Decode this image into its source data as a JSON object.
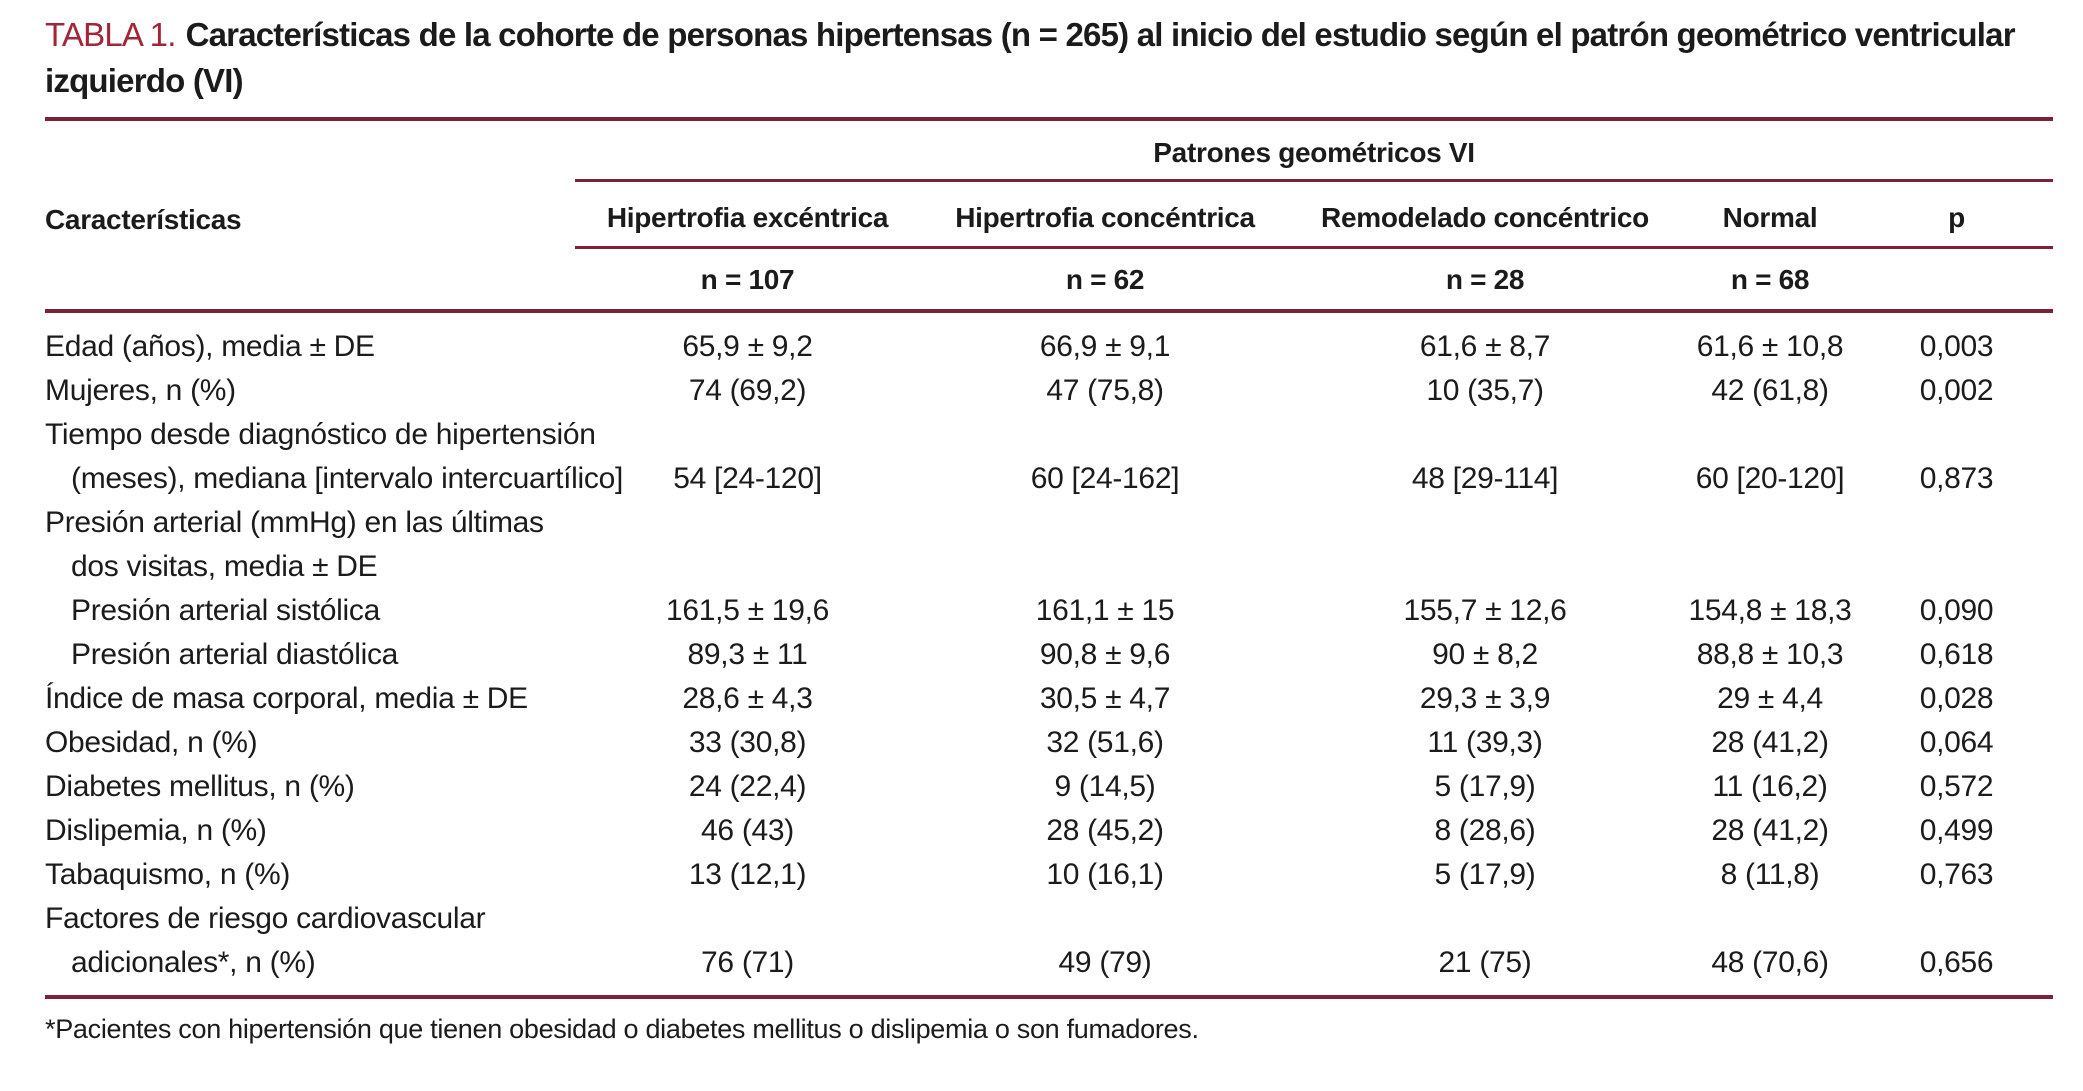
{
  "title": {
    "label": "TABLA 1.",
    "text": "Características de la cohorte de personas hipertensas (n = 265) al inicio del estudio según el patrón geométrico ventricular izquierdo (VI)"
  },
  "table": {
    "group_header": "Patrones geométricos VI",
    "row_header": "Características",
    "columns": [
      {
        "label": "Hipertrofia excéntrica",
        "n": "n = 107"
      },
      {
        "label": "Hipertrofia concéntrica",
        "n": "n = 62"
      },
      {
        "label": "Remodelado concéntrico",
        "n": "n = 28"
      },
      {
        "label": "Normal",
        "n": "n = 68"
      },
      {
        "label": "p",
        "n": ""
      }
    ],
    "rows": [
      {
        "label": "Edad (años), media ± DE",
        "indent": 0,
        "values": [
          "65,9 ± 9,2",
          "66,9 ± 9,1",
          "61,6 ± 8,7",
          "61,6 ± 10,8",
          "0,003"
        ]
      },
      {
        "label": "Mujeres, n (%)",
        "indent": 0,
        "values": [
          "74 (69,2)",
          "47 (75,8)",
          "10 (35,7)",
          "42 (61,8)",
          "0,002"
        ]
      },
      {
        "label": "Tiempo desde diagnóstico de hipertensión",
        "indent": 0,
        "values": null
      },
      {
        "label": "(meses), mediana [intervalo intercuartílico]",
        "indent": 1,
        "values": [
          "54 [24-120]",
          "60 [24-162]",
          "48 [29-114]",
          "60 [20-120]",
          "0,873"
        ]
      },
      {
        "label": "Presión arterial (mmHg) en las últimas",
        "indent": 0,
        "values": null
      },
      {
        "label": "dos visitas, media ± DE",
        "indent": 1,
        "values": null
      },
      {
        "label": "Presión arterial sistólica",
        "indent": 1,
        "values": [
          "161,5 ± 19,6",
          "161,1 ± 15",
          "155,7 ± 12,6",
          "154,8 ± 18,3",
          "0,090"
        ]
      },
      {
        "label": "Presión arterial diastólica",
        "indent": 1,
        "values": [
          "89,3 ± 11",
          "90,8 ± 9,6",
          "90 ± 8,2",
          "88,8 ± 10,3",
          "0,618"
        ]
      },
      {
        "label": "Índice de masa corporal, media ± DE",
        "indent": 0,
        "values": [
          "28,6 ± 4,3",
          "30,5 ± 4,7",
          "29,3 ± 3,9",
          "29 ± 4,4",
          "0,028"
        ]
      },
      {
        "label": "Obesidad, n (%)",
        "indent": 0,
        "values": [
          "33 (30,8)",
          "32 (51,6)",
          "11 (39,3)",
          "28 (41,2)",
          "0,064"
        ]
      },
      {
        "label": "Diabetes mellitus, n (%)",
        "indent": 0,
        "values": [
          "24 (22,4)",
          "9 (14,5)",
          "5 (17,9)",
          "11 (16,2)",
          "0,572"
        ]
      },
      {
        "label": "Dislipemia, n (%)",
        "indent": 0,
        "values": [
          "46 (43)",
          "28 (45,2)",
          "8 (28,6)",
          "28 (41,2)",
          "0,499"
        ]
      },
      {
        "label": "Tabaquismo, n (%)",
        "indent": 0,
        "values": [
          "13 (12,1)",
          "10 (16,1)",
          "5 (17,9)",
          "8 (11,8)",
          "0,763"
        ]
      },
      {
        "label": "Factores de riesgo cardiovascular",
        "indent": 0,
        "values": null
      },
      {
        "label": "adicionales*, n (%)",
        "indent": 1,
        "values": [
          "76 (71)",
          "49 (79)",
          "21 (75)",
          "48 (70,6)",
          "0,656"
        ]
      }
    ]
  },
  "footnote": "*Pacientes con hipertensión que tienen obesidad o diabetes mellitus o dislipemia o son fumadores.",
  "colors": {
    "accent_red": "#a32638",
    "rule_maroon": "#7c2139"
  }
}
